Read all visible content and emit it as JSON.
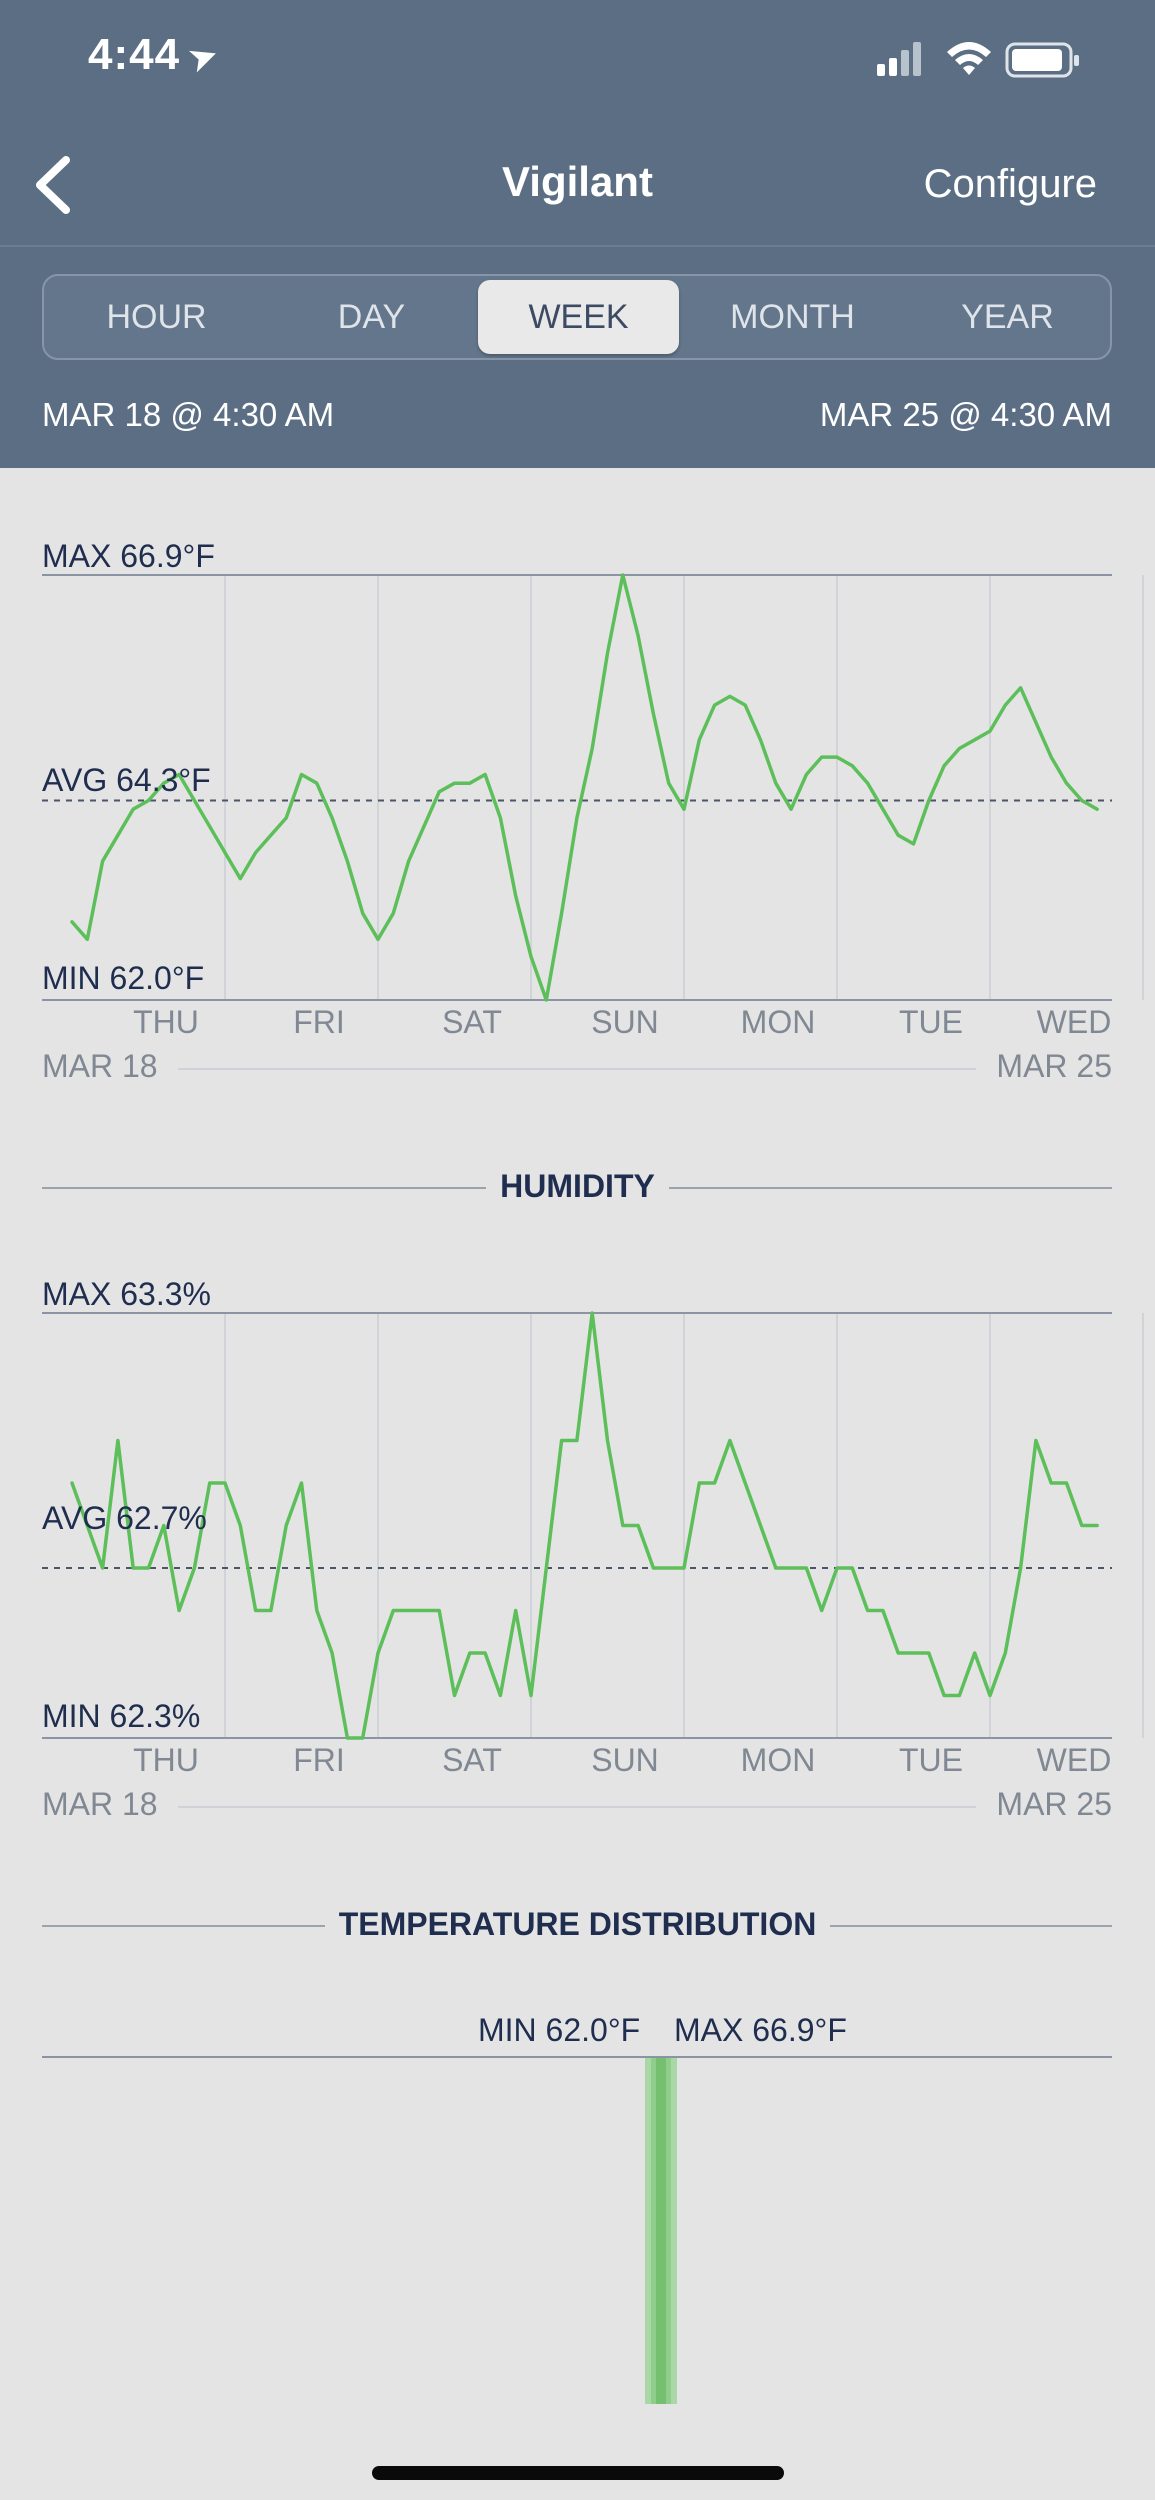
{
  "status_bar": {
    "time": "4:44"
  },
  "nav": {
    "title": "Vigilant",
    "configure_label": "Configure"
  },
  "segments": [
    {
      "label": "HOUR",
      "active": false
    },
    {
      "label": "DAY",
      "active": false
    },
    {
      "label": "WEEK",
      "active": true
    },
    {
      "label": "MONTH",
      "active": false
    },
    {
      "label": "YEAR",
      "active": false
    }
  ],
  "range": {
    "start": "MAR 18 @ 4:30 AM",
    "end": "MAR 25 @ 4:30 AM"
  },
  "temperature": {
    "max_label": "MAX 66.9°F",
    "avg_label": "AVG 64.3°F",
    "min_label": "MIN 62.0°F",
    "days": [
      "THU",
      "FRI",
      "SAT",
      "SUN",
      "MON",
      "TUE",
      "WED"
    ],
    "start_date": "MAR 18",
    "end_date": "MAR 25"
  },
  "humidity": {
    "section_title": "HUMIDITY",
    "max_label": "MAX 63.3%",
    "avg_label": "AVG 62.7%",
    "min_label": "MIN 62.3%",
    "days": [
      "THU",
      "FRI",
      "SAT",
      "SUN",
      "MON",
      "TUE",
      "WED"
    ],
    "start_date": "MAR 18",
    "end_date": "MAR 25"
  },
  "distribution": {
    "section_title": "TEMPERATURE DISTRIBUTION",
    "min_label": "MIN 62.0°F",
    "max_label": "MAX 66.9°F"
  },
  "colors": {
    "header": "#5b6e84",
    "line": "#5cbf5a",
    "background": "#e4e4e4"
  },
  "chart_data": [
    {
      "type": "line",
      "title": "",
      "xlabel": "",
      "ylabel": "",
      "unit": "°F",
      "ylim": [
        62.0,
        66.9
      ],
      "x_start": "MAR 18 @ 4:30 AM",
      "x_end": "MAR 25 @ 4:30 AM",
      "avg": 64.3,
      "x_day_ticks": [
        "THU",
        "FRI",
        "SAT",
        "SUN",
        "MON",
        "TUE",
        "WED"
      ],
      "x": [
        0,
        0.1,
        0.2,
        0.3,
        0.4,
        0.5,
        0.6,
        0.7,
        0.8,
        0.9,
        1.0,
        1.1,
        1.2,
        1.3,
        1.4,
        1.5,
        1.6,
        1.7,
        1.8,
        1.9,
        2.0,
        2.1,
        2.2,
        2.3,
        2.4,
        2.5,
        2.6,
        2.7,
        2.8,
        2.9,
        3.0,
        3.1,
        3.2,
        3.3,
        3.4,
        3.5,
        3.6,
        3.7,
        3.8,
        3.9,
        4.0,
        4.1,
        4.2,
        4.3,
        4.4,
        4.5,
        4.6,
        4.7,
        4.8,
        4.9,
        5.0,
        5.1,
        5.2,
        5.3,
        5.4,
        5.5,
        5.6,
        5.7,
        5.8,
        5.9,
        6.0,
        6.1,
        6.2,
        6.3,
        6.4,
        6.5,
        6.6,
        6.7
      ],
      "series": [
        {
          "values": [
            62.9,
            62.7,
            63.6,
            63.9,
            64.2,
            64.3,
            64.5,
            64.6,
            64.3,
            64.0,
            63.7,
            63.4,
            63.7,
            63.9,
            64.1,
            64.6,
            64.5,
            64.1,
            63.6,
            63.0,
            62.7,
            63.0,
            63.6,
            64.0,
            64.4,
            64.5,
            64.5,
            64.6,
            64.1,
            63.2,
            62.5,
            62.0,
            63.0,
            64.1,
            64.9,
            66.0,
            66.9,
            66.2,
            65.3,
            64.5,
            64.2,
            65.0,
            65.4,
            65.5,
            65.4,
            65.0,
            64.5,
            64.2,
            64.6,
            64.8,
            64.8,
            64.7,
            64.5,
            64.2,
            63.9,
            63.8,
            64.3,
            64.7,
            64.9,
            65.0,
            65.1,
            65.4,
            65.6,
            65.2,
            64.8,
            64.5,
            64.3,
            64.2
          ]
        }
      ]
    },
    {
      "type": "line",
      "title": "",
      "xlabel": "",
      "ylabel": "",
      "unit": "%",
      "ylim": [
        62.3,
        63.3
      ],
      "x_start": "MAR 18 @ 4:30 AM",
      "x_end": "MAR 25 @ 4:30 AM",
      "avg": 62.7,
      "x_day_ticks": [
        "THU",
        "FRI",
        "SAT",
        "SUN",
        "MON",
        "TUE",
        "WED"
      ],
      "x": [
        0,
        0.1,
        0.2,
        0.3,
        0.4,
        0.5,
        0.6,
        0.7,
        0.8,
        0.9,
        1.0,
        1.1,
        1.2,
        1.3,
        1.4,
        1.5,
        1.6,
        1.7,
        1.8,
        1.9,
        2.0,
        2.1,
        2.2,
        2.3,
        2.4,
        2.5,
        2.6,
        2.7,
        2.8,
        2.9,
        3.0,
        3.1,
        3.2,
        3.3,
        3.4,
        3.5,
        3.6,
        3.7,
        3.8,
        3.9,
        4.0,
        4.1,
        4.2,
        4.3,
        4.4,
        4.5,
        4.6,
        4.7,
        4.8,
        4.9,
        5.0,
        5.1,
        5.2,
        5.3,
        5.4,
        5.5,
        5.6,
        5.7,
        5.8,
        5.9,
        6.0,
        6.1,
        6.2,
        6.3,
        6.4,
        6.5,
        6.6,
        6.7
      ],
      "series": [
        {
          "values": [
            62.9,
            62.8,
            62.7,
            63.0,
            62.7,
            62.7,
            62.8,
            62.6,
            62.7,
            62.9,
            62.9,
            62.8,
            62.6,
            62.6,
            62.8,
            62.9,
            62.6,
            62.5,
            62.3,
            62.3,
            62.5,
            62.6,
            62.6,
            62.6,
            62.6,
            62.4,
            62.5,
            62.5,
            62.4,
            62.6,
            62.4,
            62.7,
            63.0,
            63.0,
            63.3,
            63.0,
            62.8,
            62.8,
            62.7,
            62.7,
            62.7,
            62.9,
            62.9,
            63.0,
            62.9,
            62.8,
            62.7,
            62.7,
            62.7,
            62.6,
            62.7,
            62.7,
            62.6,
            62.6,
            62.5,
            62.5,
            62.5,
            62.4,
            62.4,
            62.5,
            62.4,
            62.5,
            62.7,
            63.0,
            62.9,
            62.9,
            62.8,
            62.8
          ]
        }
      ]
    }
  ]
}
